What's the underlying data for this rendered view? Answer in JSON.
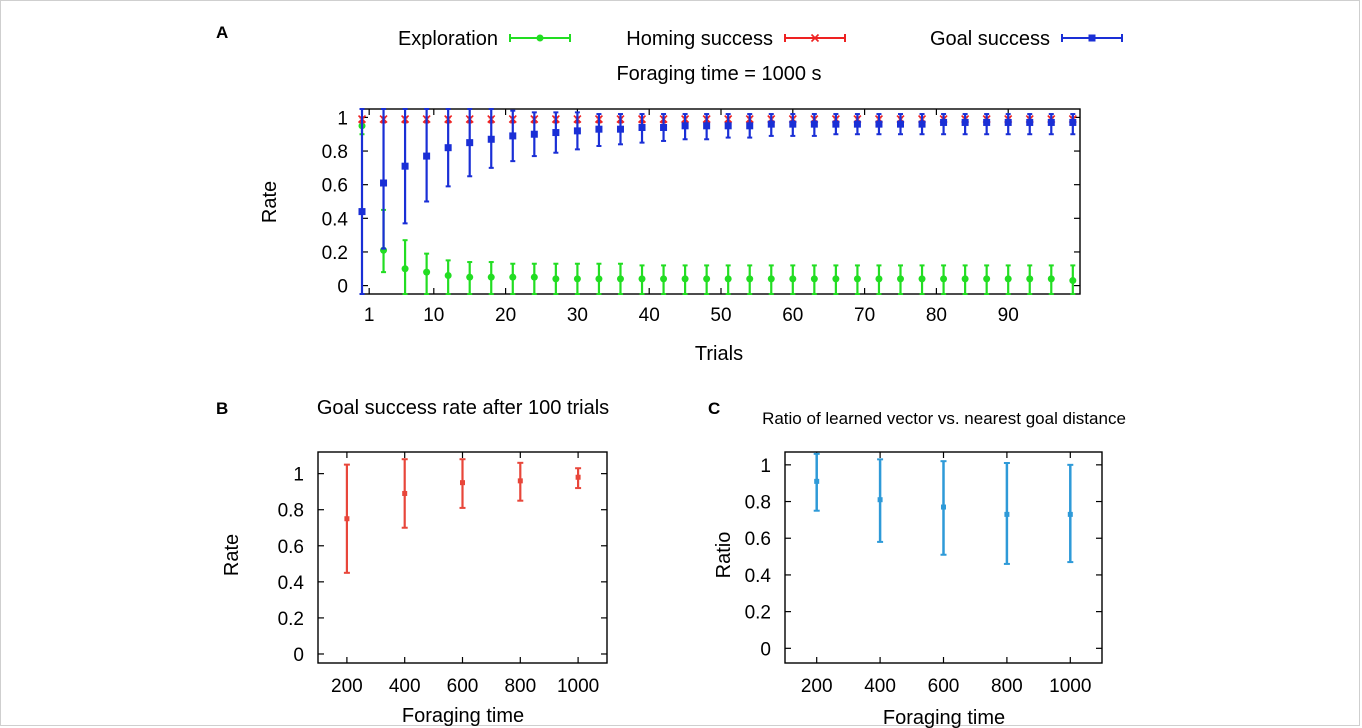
{
  "panels": [
    {
      "letter": "A"
    },
    {
      "letter": "B"
    },
    {
      "letter": "C"
    }
  ],
  "chart_data": [
    {
      "panel": "A",
      "type": "line",
      "title": "Foraging time = 1000 s",
      "xlabel": "Trials",
      "ylabel": "Rate",
      "xlim": [
        0,
        100
      ],
      "ylim": [
        -0.05,
        1.05
      ],
      "x_ticks": [
        1,
        10,
        20,
        30,
        40,
        50,
        60,
        70,
        80,
        90
      ],
      "y_ticks": [
        0,
        0.2,
        0.4,
        0.6,
        0.8,
        1
      ],
      "x_tick_labels": [
        "1",
        "10",
        "20",
        "30",
        "40",
        "50",
        "60",
        "70",
        "80",
        "90"
      ],
      "y_tick_labels": [
        "0",
        "0.2",
        "0.4",
        "0.6",
        "0.8",
        "1"
      ],
      "legend_position": "top",
      "x": [
        0,
        3,
        6,
        9,
        12,
        15,
        18,
        21,
        24,
        27,
        30,
        33,
        36,
        39,
        42,
        45,
        48,
        51,
        54,
        57,
        60,
        63,
        66,
        69,
        72,
        75,
        78,
        81,
        84,
        87,
        90,
        93,
        96,
        99
      ],
      "series": [
        {
          "name": "Exploration",
          "color": "#22dd22",
          "marker": "dot",
          "values": [
            0.95,
            0.21,
            0.1,
            0.08,
            0.06,
            0.05,
            0.05,
            0.05,
            0.05,
            0.04,
            0.04,
            0.04,
            0.04,
            0.04,
            0.04,
            0.04,
            0.04,
            0.04,
            0.04,
            0.04,
            0.04,
            0.04,
            0.04,
            0.04,
            0.04,
            0.04,
            0.04,
            0.04,
            0.04,
            0.04,
            0.04,
            0.04,
            0.04,
            0.03
          ],
          "err_low": [
            0.9,
            0.08,
            -0.05,
            -0.05,
            -0.05,
            -0.05,
            -0.05,
            -0.05,
            -0.05,
            -0.05,
            -0.05,
            -0.05,
            -0.05,
            -0.05,
            -0.05,
            -0.05,
            -0.05,
            -0.05,
            -0.05,
            -0.05,
            -0.05,
            -0.05,
            -0.05,
            -0.05,
            -0.05,
            -0.05,
            -0.05,
            -0.05,
            -0.05,
            -0.05,
            -0.05,
            -0.05,
            -0.05,
            -0.05
          ],
          "err_high": [
            1.0,
            0.45,
            0.27,
            0.19,
            0.15,
            0.14,
            0.14,
            0.13,
            0.13,
            0.13,
            0.13,
            0.13,
            0.13,
            0.12,
            0.12,
            0.12,
            0.12,
            0.12,
            0.12,
            0.12,
            0.12,
            0.12,
            0.12,
            0.12,
            0.12,
            0.12,
            0.12,
            0.12,
            0.12,
            0.12,
            0.12,
            0.12,
            0.12,
            0.12
          ]
        },
        {
          "name": "Homing success",
          "color": "#ee2222",
          "marker": "x",
          "values": [
            0.99,
            0.99,
            0.99,
            0.99,
            0.99,
            0.99,
            0.99,
            0.99,
            0.99,
            0.99,
            0.99,
            0.99,
            0.99,
            0.99,
            0.99,
            0.99,
            0.99,
            0.99,
            0.99,
            0.99,
            0.99,
            0.99,
            0.99,
            0.99,
            0.99,
            0.99,
            0.99,
            0.99,
            0.99,
            0.99,
            0.99,
            0.99,
            0.99,
            0.99
          ],
          "err_low": [
            0.97,
            0.97,
            0.97,
            0.97,
            0.97,
            0.97,
            0.97,
            0.97,
            0.97,
            0.97,
            0.97,
            0.97,
            0.97,
            0.97,
            0.97,
            0.97,
            0.97,
            0.97,
            0.97,
            0.97,
            0.97,
            0.97,
            0.97,
            0.97,
            0.97,
            0.97,
            0.97,
            0.97,
            0.97,
            0.97,
            0.97,
            0.97,
            0.97,
            0.97
          ],
          "err_high": [
            1.0,
            1.0,
            1.0,
            1.0,
            1.0,
            1.0,
            1.0,
            1.0,
            1.0,
            1.0,
            1.0,
            1.0,
            1.0,
            1.0,
            1.0,
            1.0,
            1.0,
            1.0,
            1.0,
            1.0,
            1.0,
            1.0,
            1.0,
            1.0,
            1.0,
            1.0,
            1.0,
            1.0,
            1.0,
            1.0,
            1.0,
            1.0,
            1.0,
            1.0
          ]
        },
        {
          "name": "Goal success",
          "color": "#1a2fd6",
          "marker": "square",
          "values": [
            0.44,
            0.61,
            0.71,
            0.77,
            0.82,
            0.85,
            0.87,
            0.89,
            0.9,
            0.91,
            0.92,
            0.93,
            0.93,
            0.94,
            0.94,
            0.95,
            0.95,
            0.95,
            0.95,
            0.96,
            0.96,
            0.96,
            0.96,
            0.96,
            0.96,
            0.96,
            0.96,
            0.97,
            0.97,
            0.97,
            0.97,
            0.97,
            0.97,
            0.97
          ],
          "err_low": [
            -0.05,
            0.22,
            0.37,
            0.5,
            0.59,
            0.65,
            0.7,
            0.74,
            0.77,
            0.79,
            0.81,
            0.83,
            0.84,
            0.85,
            0.86,
            0.87,
            0.87,
            0.88,
            0.88,
            0.89,
            0.89,
            0.89,
            0.9,
            0.9,
            0.9,
            0.9,
            0.9,
            0.9,
            0.9,
            0.9,
            0.9,
            0.9,
            0.9,
            0.9
          ],
          "err_high": [
            1.05,
            1.05,
            1.05,
            1.05,
            1.05,
            1.05,
            1.05,
            1.04,
            1.03,
            1.03,
            1.03,
            1.02,
            1.02,
            1.02,
            1.02,
            1.02,
            1.02,
            1.02,
            1.02,
            1.02,
            1.02,
            1.02,
            1.02,
            1.02,
            1.02,
            1.02,
            1.02,
            1.02,
            1.02,
            1.02,
            1.02,
            1.02,
            1.02,
            1.02
          ]
        }
      ]
    },
    {
      "panel": "B",
      "type": "scatter",
      "title": "Goal success rate after 100 trials",
      "xlabel": "Foraging time",
      "ylabel": "Rate",
      "xlim": [
        100,
        1100
      ],
      "ylim": [
        -0.05,
        1.12
      ],
      "x_ticks": [
        200,
        400,
        600,
        800,
        1000
      ],
      "y_ticks": [
        0,
        0.2,
        0.4,
        0.6,
        0.8,
        1
      ],
      "x_tick_labels": [
        "200",
        "400",
        "600",
        "800",
        "1000"
      ],
      "y_tick_labels": [
        "0",
        "0.2",
        "0.4",
        "0.6",
        "0.8",
        "1"
      ],
      "x": [
        200,
        400,
        600,
        800,
        1000
      ],
      "series": [
        {
          "color": "#e8463a",
          "values": [
            0.75,
            0.89,
            0.95,
            0.96,
            0.98
          ],
          "err_low": [
            0.45,
            0.7,
            0.81,
            0.85,
            0.92
          ],
          "err_high": [
            1.05,
            1.08,
            1.08,
            1.06,
            1.03
          ]
        }
      ]
    },
    {
      "panel": "C",
      "type": "scatter",
      "title": "Ratio of learned vector vs. nearest goal distance",
      "xlabel": "Foraging time",
      "ylabel": "Ratio",
      "xlim": [
        100,
        1100
      ],
      "ylim": [
        -0.08,
        1.07
      ],
      "x_ticks": [
        200,
        400,
        600,
        800,
        1000
      ],
      "y_ticks": [
        0,
        0.2,
        0.4,
        0.6,
        0.8,
        1
      ],
      "x_tick_labels": [
        "200",
        "400",
        "600",
        "800",
        "1000"
      ],
      "y_tick_labels": [
        "0",
        "0.2",
        "0.4",
        "0.6",
        "0.8",
        "1"
      ],
      "x": [
        200,
        400,
        600,
        800,
        1000
      ],
      "series": [
        {
          "color": "#2e9ad8",
          "values": [
            0.91,
            0.81,
            0.77,
            0.73,
            0.73
          ],
          "err_low": [
            0.75,
            0.58,
            0.51,
            0.46,
            0.47
          ],
          "err_high": [
            1.06,
            1.03,
            1.02,
            1.01,
            1.0
          ]
        }
      ]
    }
  ]
}
